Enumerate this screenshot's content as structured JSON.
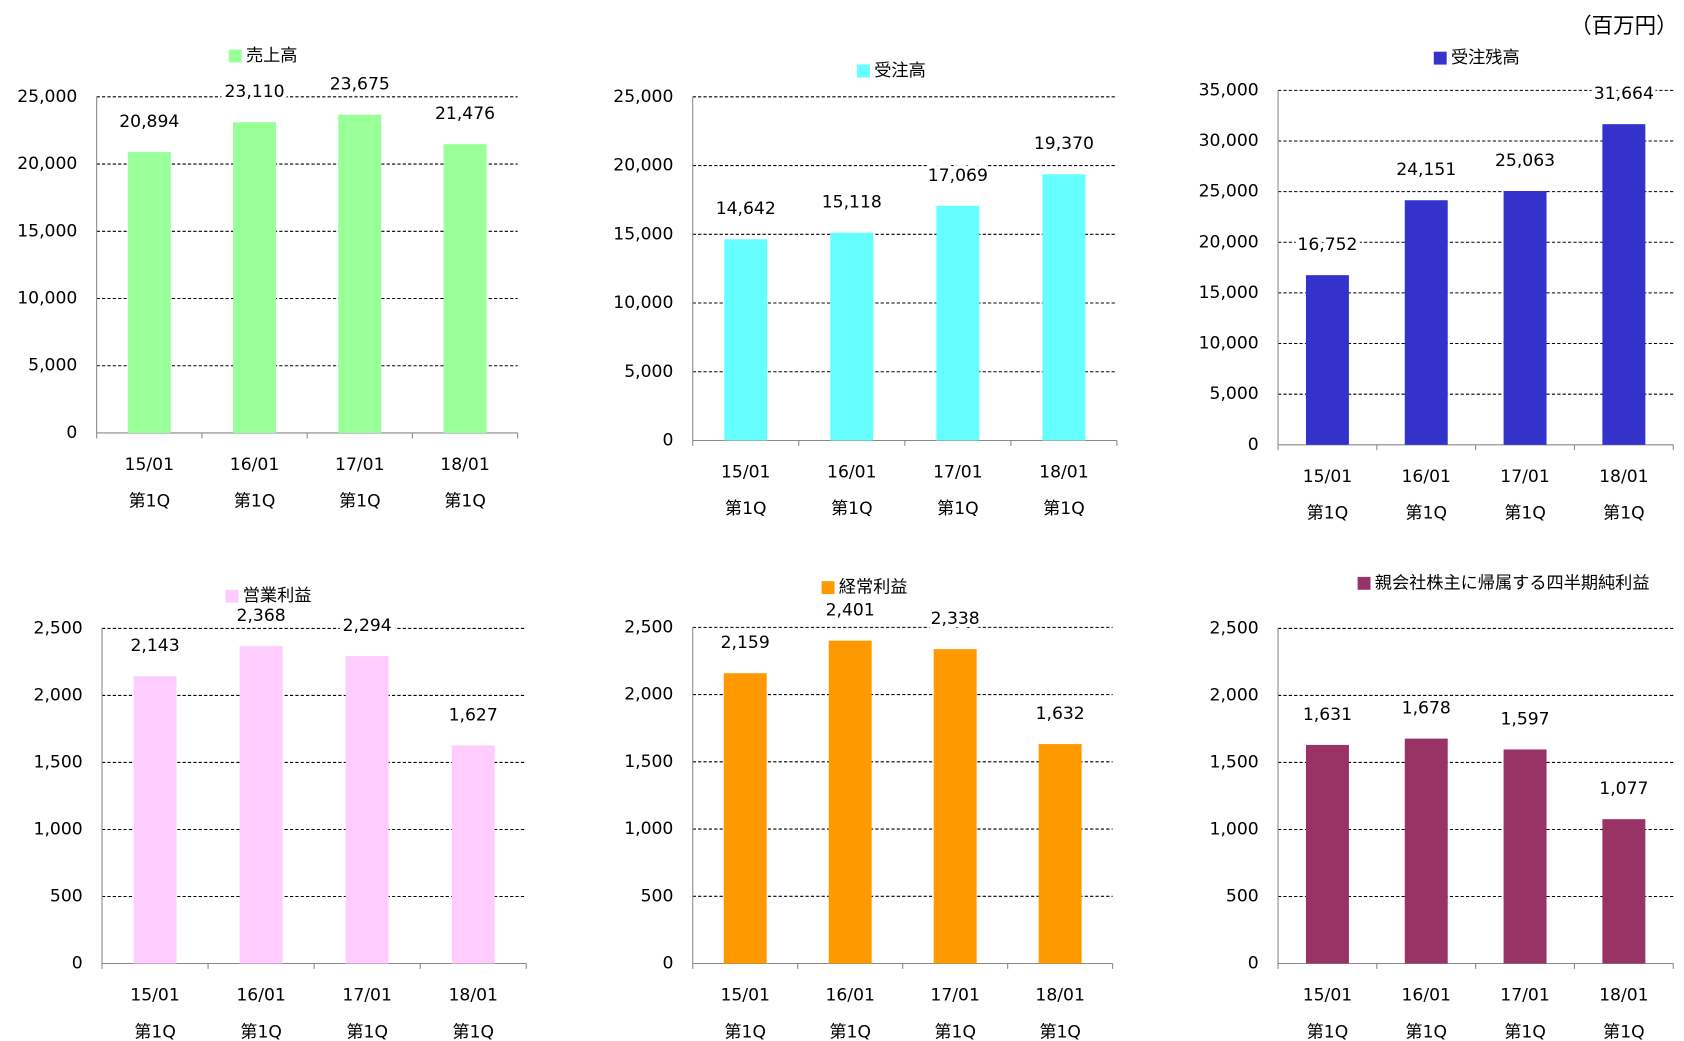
{
  "unit": "（百万円）",
  "chart_data": [
    {
      "type": "bar",
      "categories": [
        [
          "15/01",
          "第1Q"
        ],
        [
          "16/01",
          "第1Q"
        ],
        [
          "17/01",
          "第1Q"
        ],
        [
          "18/01",
          "第1Q"
        ]
      ],
      "series": [
        {
          "name": "売上高",
          "color": "#99ff99",
          "values": [
            20894,
            23110,
            23675,
            21476
          ],
          "value_labels": [
            "20,894",
            "23,110",
            "23,675",
            "21,476"
          ]
        }
      ],
      "ylim": [
        0,
        25000
      ],
      "yticks": [
        0,
        {
          "value": 5000,
          "label": "5,000"
        },
        {
          "value": 10000,
          "label": "10,000"
        },
        {
          "value": 15000,
          "label": "15,000"
        },
        {
          "value": 20000,
          "label": "20,000"
        },
        {
          "value": 25000,
          "label": "25,000"
        }
      ],
      "grid": true
    },
    {
      "type": "bar",
      "categories": [
        [
          "15/01",
          "第1Q"
        ],
        [
          "16/01",
          "第1Q"
        ],
        [
          "17/01",
          "第1Q"
        ],
        [
          "18/01",
          "第1Q"
        ]
      ],
      "series": [
        {
          "name": "受注高",
          "color": "#66ffff",
          "values": [
            14642,
            15118,
            17069,
            19370
          ],
          "value_labels": [
            "14,642",
            "15,118",
            "17,069",
            "19,370"
          ]
        }
      ],
      "ylim": [
        0,
        25000
      ],
      "yticks": [
        0,
        {
          "value": 5000,
          "label": "5,000"
        },
        {
          "value": 10000,
          "label": "10,000"
        },
        {
          "value": 15000,
          "label": "15,000"
        },
        {
          "value": 20000,
          "label": "20,000"
        },
        {
          "value": 25000,
          "label": "25,000"
        }
      ],
      "grid": true
    },
    {
      "type": "bar",
      "categories": [
        [
          "15/01",
          "第1Q"
        ],
        [
          "16/01",
          "第1Q"
        ],
        [
          "17/01",
          "第1Q"
        ],
        [
          "18/01",
          "第1Q"
        ]
      ],
      "series": [
        {
          "name": "受注残高",
          "color": "#3333cc",
          "values": [
            16752,
            24151,
            25063,
            31664
          ],
          "value_labels": [
            "16,752",
            "24,151",
            "25,063",
            "31,664"
          ]
        }
      ],
      "ylim": [
        0,
        35000
      ],
      "yticks": [
        0,
        {
          "value": 5000,
          "label": "5,000"
        },
        {
          "value": 10000,
          "label": "10,000"
        },
        {
          "value": 15000,
          "label": "15,000"
        },
        {
          "value": 20000,
          "label": "20,000"
        },
        {
          "value": 25000,
          "label": "25,000"
        },
        {
          "value": 30000,
          "label": "30,000"
        },
        {
          "value": 35000,
          "label": "35,000"
        }
      ],
      "grid": true
    },
    {
      "type": "bar",
      "categories": [
        [
          "15/01",
          "第1Q"
        ],
        [
          "16/01",
          "第1Q"
        ],
        [
          "17/01",
          "第1Q"
        ],
        [
          "18/01",
          "第1Q"
        ]
      ],
      "series": [
        {
          "name": "営業利益",
          "color": "#ffccff",
          "values": [
            2143,
            2368,
            2294,
            1627
          ],
          "value_labels": [
            "2,143",
            "2,368",
            "2,294",
            "1,627"
          ]
        }
      ],
      "ylim": [
        0,
        2500
      ],
      "yticks": [
        0,
        500,
        {
          "value": 1000,
          "label": "1,000"
        },
        {
          "value": 1500,
          "label": "1,500"
        },
        {
          "value": 2000,
          "label": "2,000"
        },
        {
          "value": 2500,
          "label": "2,500"
        }
      ],
      "grid": true
    },
    {
      "type": "bar",
      "categories": [
        [
          "15/01",
          "第1Q"
        ],
        [
          "16/01",
          "第1Q"
        ],
        [
          "17/01",
          "第1Q"
        ],
        [
          "18/01",
          "第1Q"
        ]
      ],
      "series": [
        {
          "name": "経常利益",
          "color": "#ff9900",
          "values": [
            2159,
            2401,
            2338,
            1632
          ],
          "value_labels": [
            "2,159",
            "2,401",
            "2,338",
            "1,632"
          ]
        }
      ],
      "ylim": [
        0,
        2500
      ],
      "yticks": [
        0,
        500,
        {
          "value": 1000,
          "label": "1,000"
        },
        {
          "value": 1500,
          "label": "1,500"
        },
        {
          "value": 2000,
          "label": "2,000"
        },
        {
          "value": 2500,
          "label": "2,500"
        }
      ],
      "grid": true
    },
    {
      "type": "bar",
      "categories": [
        [
          "15/01",
          "第1Q"
        ],
        [
          "16/01",
          "第1Q"
        ],
        [
          "17/01",
          "第1Q"
        ],
        [
          "18/01",
          "第1Q"
        ]
      ],
      "series": [
        {
          "name": "親会社株主に帰属する四半期純利益",
          "color": "#993366",
          "values": [
            1631,
            1678,
            1597,
            1077
          ],
          "value_labels": [
            "1,631",
            "1,678",
            "1,597",
            "1,077"
          ]
        }
      ],
      "ylim": [
        0,
        2500
      ],
      "yticks": [
        0,
        500,
        {
          "value": 1000,
          "label": "1,000"
        },
        {
          "value": 1500,
          "label": "1,500"
        },
        {
          "value": 2000,
          "label": "2,000"
        },
        {
          "value": 2500,
          "label": "2,500"
        }
      ],
      "grid": true
    }
  ]
}
